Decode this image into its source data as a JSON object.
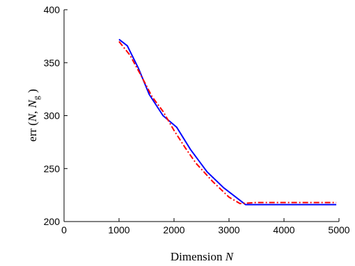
{
  "chart_data": {
    "type": "line",
    "title": "",
    "xlabel": "Dimension N",
    "ylabel": "err (N, N_g)",
    "xlim": [
      0,
      5000
    ],
    "ylim": [
      200,
      400
    ],
    "xticks": [
      "0",
      "1000",
      "2000",
      "3000",
      "4000",
      "5000"
    ],
    "yticks": [
      "200",
      "250",
      "300",
      "350",
      "400"
    ],
    "grid": false,
    "legend": "none",
    "series": [
      {
        "color": "#0000ff",
        "linestyle": "solid",
        "x": [
          1000,
          1150,
          1350,
          1550,
          1800,
          2050,
          2300,
          2600,
          2900,
          3300,
          3500,
          4000,
          4500,
          4950
        ],
        "y": [
          372,
          366,
          345,
          320,
          300,
          289,
          268,
          247,
          232,
          216,
          216,
          216,
          216,
          216
        ]
      },
      {
        "color": "#ff0000",
        "linestyle": "dash-dot",
        "x": [
          1000,
          1200,
          1400,
          1600,
          1800,
          2000,
          2200,
          2400,
          2700,
          3000,
          3200,
          3500,
          4000,
          4500,
          4950
        ],
        "y": [
          370,
          357,
          338,
          318,
          304,
          286,
          270,
          255,
          238,
          223,
          217,
          218,
          218,
          218,
          218
        ]
      }
    ]
  }
}
